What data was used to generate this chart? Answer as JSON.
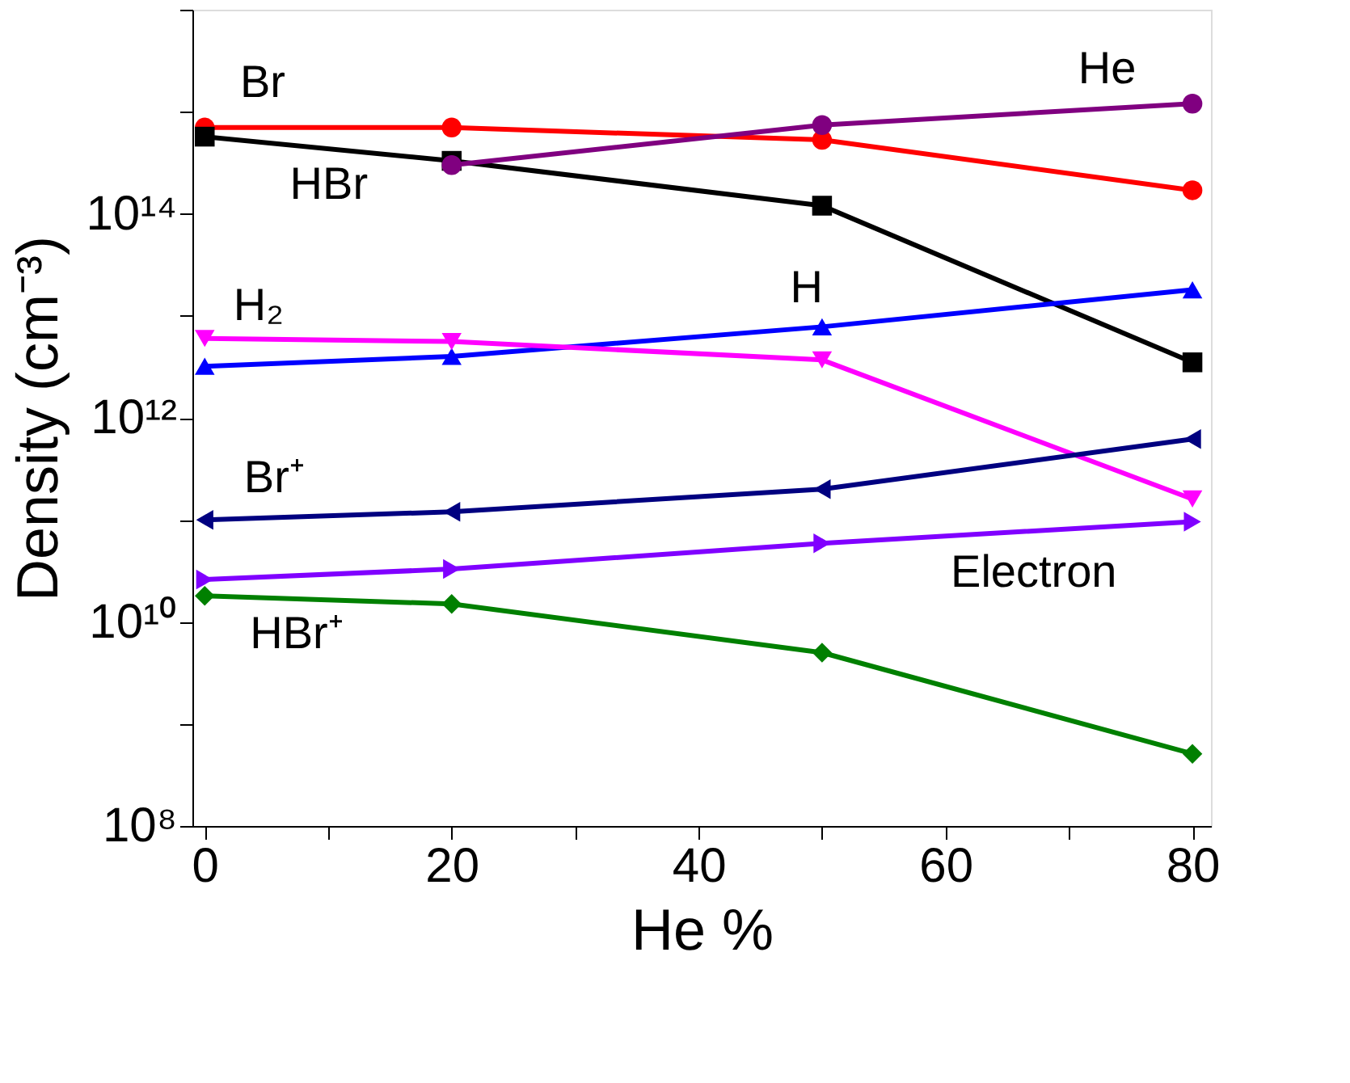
{
  "chart_data": {
    "type": "line",
    "xlabel": "He %",
    "ylabel": "Density (cm⁻³)",
    "x": [
      0,
      20,
      50,
      80
    ],
    "series": [
      {
        "color": "#ff0000",
        "marker": "circle",
        "values": [
          700000000000000.0,
          700000000000000.0,
          530000000000000.0,
          170000000000000.0
        ]
      },
      {
        "color": "#000000",
        "marker": "square",
        "values": [
          570000000000000.0,
          330000000000000.0,
          120000000000000.0,
          3500000000000.0
        ]
      },
      {
        "color": "#800080",
        "marker": "circle",
        "values": [
          null,
          300000000000000.0,
          740000000000000.0,
          1200000000000000.0
        ]
      },
      {
        "color": "#0000ff",
        "marker": "triangle-up",
        "values": [
          3200000000000.0,
          4000000000000.0,
          7800000000000.0,
          18000000000000.0
        ]
      },
      {
        "color": "#ff00ff",
        "marker": "triangle-down",
        "values": [
          6000000000000.0,
          5600000000000.0,
          3700000000000.0,
          160000000000.0
        ]
      },
      {
        "color": "#000080",
        "marker": "triangle-left",
        "values": [
          100000000000.0,
          120000000000.0,
          200000000000.0,
          620000000000.0
        ]
      },
      {
        "color": "#8000ff",
        "marker": "triangle-right",
        "values": [
          26000000000.0,
          33000000000.0,
          59000000000.0,
          96000000000.0
        ]
      },
      {
        "color": "#008000",
        "marker": "diamond",
        "values": [
          18000000000.0,
          15000000000.0,
          5000000000.0,
          510000000.0
        ]
      }
    ],
    "annotations": [
      "Br",
      "HBr",
      "He",
      "H₂",
      "H",
      "Br⁺",
      "Electron",
      "HBr⁺"
    ],
    "log": "y",
    "grid": false,
    "line_style": "solid",
    "xlim": [
      -1,
      81.5
    ],
    "xticks": [
      0,
      {
        "value": 10,
        "label": null
      },
      20,
      {
        "value": 30,
        "label": null
      },
      40,
      {
        "value": 50,
        "label": null
      },
      60,
      {
        "value": 70,
        "label": null
      },
      80
    ],
    "ylim": [
      100000000.0,
      1e+16
    ],
    "yticks": [
      {
        "value": 100000000.0,
        "label": "10⁸"
      },
      {
        "value": 1000000000.0,
        "label": null
      },
      {
        "value": 10000000000.0,
        "label": "10¹⁰"
      },
      {
        "value": 100000000000.0,
        "label": null
      },
      {
        "value": 1000000000000.0,
        "label": "10¹²"
      },
      {
        "value": 10000000000000.0,
        "label": null
      },
      {
        "value": 100000000000000.0,
        "label": "10¹⁴"
      },
      {
        "value": 1000000000000000.0,
        "label": null
      },
      {
        "value": 1e+16,
        "label": null
      }
    ]
  }
}
